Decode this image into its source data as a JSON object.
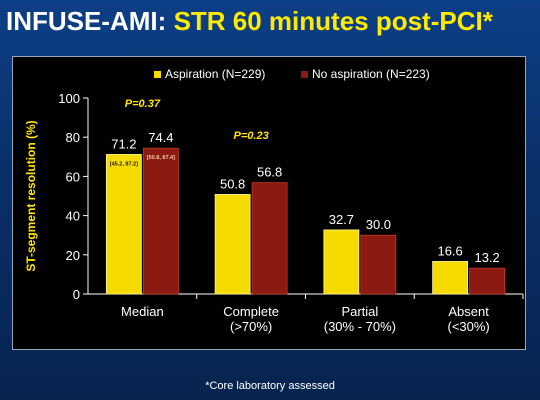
{
  "slide": {
    "title_prefix": "INFUSE-AMI:",
    "title_suffix": "STR 60 minutes post-PCI*",
    "footnote": "*Core laboratory assessed"
  },
  "colors": {
    "aspiration": "#f6db00",
    "no_aspiration": "#8d1a10",
    "annotation": "#ffe600",
    "ylabel": "#ffe600"
  },
  "chart_data": {
    "type": "bar",
    "ylabel": "ST-segment resolution (%)",
    "ylim": [
      0,
      100
    ],
    "yticks": [
      0,
      20,
      40,
      60,
      80,
      100
    ],
    "legend_position": "top-right",
    "categories": [
      [
        "Median"
      ],
      [
        "Complete",
        "(>70%)"
      ],
      [
        "Partial",
        "(30% - 70%)"
      ],
      [
        "Absent",
        "(<30%)"
      ]
    ],
    "series": [
      {
        "name": "Aspiration (N=229)",
        "values": [
          71.2,
          50.8,
          32.7,
          16.6
        ],
        "labels": [
          "71.2",
          "50.8",
          "32.7",
          "16.6"
        ]
      },
      {
        "name": "No aspiration (N=223)",
        "values": [
          74.4,
          56.8,
          30.0,
          13.2
        ],
        "labels": [
          "74.4",
          "56.8",
          "30.0",
          "13.2"
        ]
      }
    ],
    "inner_labels": [
      {
        "category": 0,
        "series": 0,
        "text": "[45.2, 87.2]"
      },
      {
        "category": 0,
        "series": 1,
        "text": "[50.8, 87.4]"
      }
    ],
    "annotations": [
      {
        "text": "P=0.37",
        "category": 0
      },
      {
        "text": "P=0.23",
        "category": 1
      }
    ]
  }
}
